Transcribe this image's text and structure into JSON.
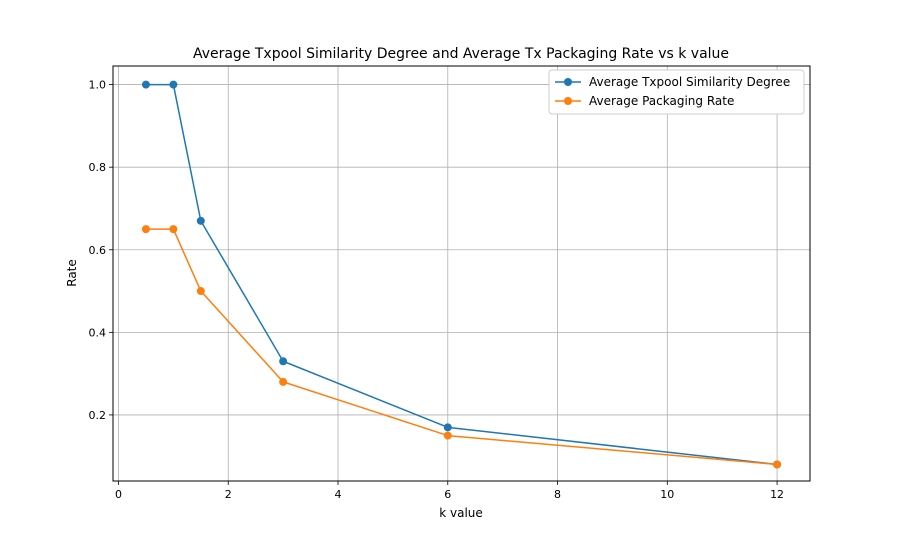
{
  "chart_data": {
    "type": "line",
    "title": "Average Txpool Similarity Degree and Average Tx Packaging Rate vs k value",
    "xlabel": "k value",
    "ylabel": "Rate",
    "xlim": [
      -0.1,
      12.6
    ],
    "ylim": [
      0.04,
      1.045
    ],
    "xticks": [
      0,
      2,
      4,
      6,
      8,
      10,
      12
    ],
    "xtick_labels": [
      "0",
      "2",
      "4",
      "6",
      "8",
      "10",
      "12"
    ],
    "yticks": [
      0.2,
      0.4,
      0.6,
      0.8,
      1.0
    ],
    "ytick_labels": [
      "0.2",
      "0.4",
      "0.6",
      "0.8",
      "1.0"
    ],
    "grid": true,
    "legend_position": "top-right",
    "x": [
      0.5,
      1,
      1.5,
      3,
      6,
      12
    ],
    "series": [
      {
        "name": "Average Txpool Similarity Degree",
        "color": "#1f77b4",
        "marker": "circle",
        "values": [
          1.0,
          1.0,
          0.67,
          0.33,
          0.17,
          0.08
        ]
      },
      {
        "name": "Average Packaging Rate",
        "color": "#ff7f0e",
        "marker": "circle",
        "values": [
          0.65,
          0.65,
          0.5,
          0.28,
          0.15,
          0.08
        ]
      }
    ]
  }
}
